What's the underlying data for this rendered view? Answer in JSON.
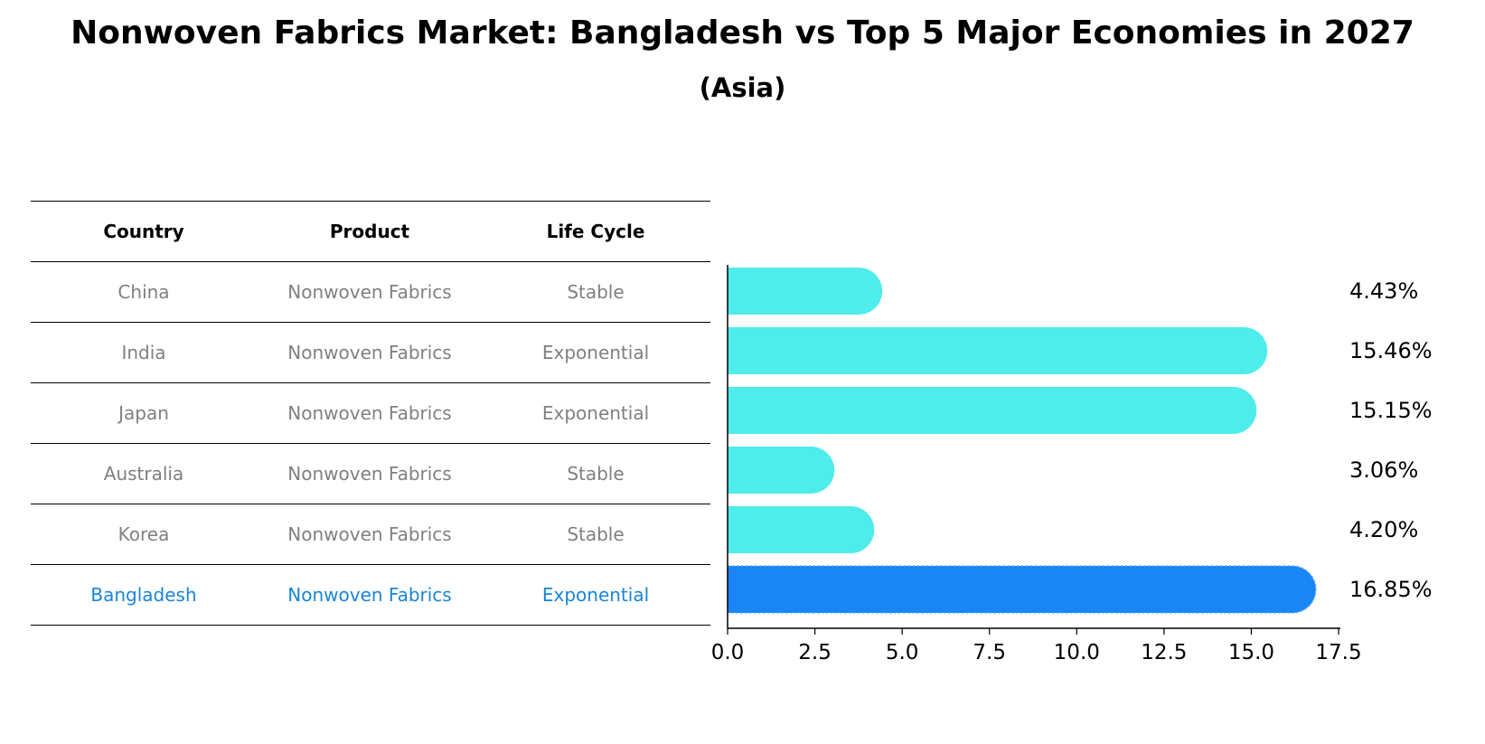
{
  "chart_data": {
    "type": "bar",
    "orientation": "horizontal",
    "title": "Nonwoven Fabrics Market: Bangladesh vs Top 5 Major Economies in 2027",
    "subtitle": "(Asia)",
    "table": {
      "headers": [
        "Country",
        "Product",
        "Life Cycle"
      ],
      "rows": [
        {
          "country": "China",
          "product": "Nonwoven Fabrics",
          "life_cycle": "Stable"
        },
        {
          "country": "India",
          "product": "Nonwoven Fabrics",
          "life_cycle": "Exponential"
        },
        {
          "country": "Japan",
          "product": "Nonwoven Fabrics",
          "life_cycle": "Exponential"
        },
        {
          "country": "Australia",
          "product": "Nonwoven Fabrics",
          "life_cycle": "Stable"
        },
        {
          "country": "Korea",
          "product": "Nonwoven Fabrics",
          "life_cycle": "Stable"
        },
        {
          "country": "Bangladesh",
          "product": "Nonwoven Fabrics",
          "life_cycle": "Exponential"
        }
      ]
    },
    "categories": [
      "China",
      "India",
      "Japan",
      "Australia",
      "Korea",
      "Bangladesh"
    ],
    "values": [
      4.43,
      15.46,
      15.15,
      3.06,
      4.2,
      16.85
    ],
    "value_labels": [
      "4.43%",
      "15.46%",
      "15.15%",
      "3.06%",
      "4.20%",
      "16.85%"
    ],
    "highlight": "Bangladesh",
    "xlim": [
      0,
      17.5
    ],
    "xticks": [
      "0.0",
      "2.5",
      "5.0",
      "7.5",
      "10.0",
      "12.5",
      "15.0",
      "17.5"
    ],
    "colors": {
      "bar": "#4eeceb",
      "highlight_bar": "#1a85f5",
      "highlight_text": "#1a85d6",
      "muted_text": "#808080"
    }
  }
}
